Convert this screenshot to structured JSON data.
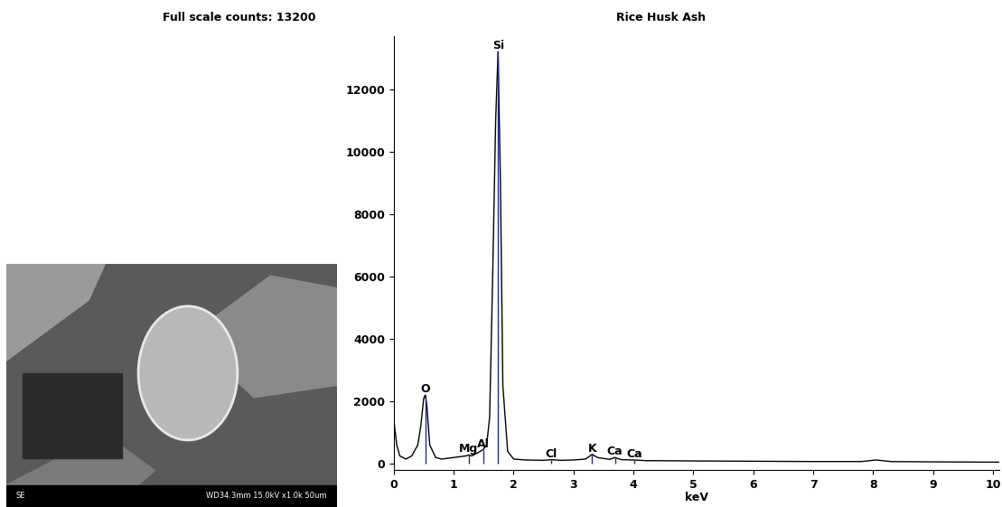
{
  "chart_data": {
    "type": "line",
    "title": "Rice Husk Ash",
    "subtitle": "Full scale counts: 13200",
    "x_label": "keV",
    "x": [
      0,
      0.05,
      0.1,
      0.2,
      0.3,
      0.4,
      0.45,
      0.5,
      0.525,
      0.55,
      0.6,
      0.7,
      0.8,
      1.0,
      1.2,
      1.25,
      1.3,
      1.4,
      1.49,
      1.55,
      1.6,
      1.65,
      1.7,
      1.74,
      1.78,
      1.82,
      1.9,
      2.0,
      2.2,
      2.5,
      2.62,
      2.8,
      3.0,
      3.2,
      3.31,
      3.4,
      3.6,
      3.69,
      3.8,
      4.01,
      4.2,
      5,
      6,
      7,
      7.8,
      8.05,
      8.3,
      9,
      10.1
    ],
    "values": [
      1400,
      600,
      250,
      150,
      250,
      600,
      1200,
      2100,
      2200,
      1900,
      600,
      200,
      150,
      200,
      250,
      280,
      250,
      350,
      450,
      600,
      1500,
      6000,
      11000,
      13200,
      9000,
      2500,
      400,
      150,
      120,
      110,
      130,
      110,
      120,
      150,
      300,
      200,
      140,
      200,
      130,
      120,
      100,
      90,
      80,
      70,
      70,
      120,
      70,
      60,
      50
    ],
    "color": "#000000",
    "peaks": [
      {
        "label": "O",
        "x": 0.525,
        "y": 2200
      },
      {
        "label": "Mg",
        "x": 1.25,
        "y": 280
      },
      {
        "label": "Al",
        "x": 1.49,
        "y": 450
      },
      {
        "label": "Si",
        "x": 1.74,
        "y": 13200
      },
      {
        "label": "Cl",
        "x": 2.62,
        "y": 130
      },
      {
        "label": "K",
        "x": 3.31,
        "y": 300
      },
      {
        "label": "Ca",
        "x": 3.69,
        "y": 200
      },
      {
        "label": "Ca",
        "x": 4.01,
        "y": 120
      }
    ],
    "peak_color": "#1f2a9c",
    "xlim": [
      0,
      10.1
    ],
    "ylim": [
      -200,
      13700
    ],
    "xticks": [
      0,
      1,
      2,
      3,
      4,
      5,
      6,
      7,
      8,
      9,
      10
    ],
    "yticks": [
      0,
      2000,
      4000,
      6000,
      8000,
      10000,
      12000
    ],
    "grid": false
  },
  "micrograph": {
    "labels": [
      "SE",
      "WD34.3mm 15.0kV x1.0k 50um"
    ]
  }
}
